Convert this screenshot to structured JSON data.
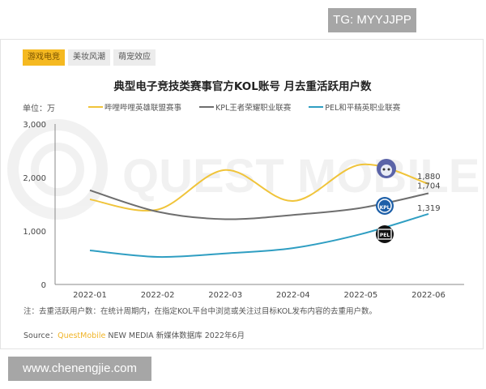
{
  "watermarks": {
    "top_right": "TG: MYYJJPP",
    "bottom_left": "www.chenengjie.com",
    "background": "QUEST MOBILE"
  },
  "tabs": [
    {
      "label": "游戏电竞",
      "active": true
    },
    {
      "label": "美妆风潮",
      "active": false
    },
    {
      "label": "萌宠效应",
      "active": false
    }
  ],
  "chart": {
    "title": "典型电子竞技类赛事官方KOL账号 月去重活跃用户数",
    "unit": "单位：万"
  },
  "legend": [
    {
      "label": "哔哩哔哩英雄联盟赛事",
      "color": "#f0c43a"
    },
    {
      "label": "KPL王者荣耀职业联赛",
      "color": "#6e6e6e"
    },
    {
      "label": "PEL和平精英职业联赛",
      "color": "#2f9ec2"
    }
  ],
  "footer": {
    "note": "注：去重活跃用户数：在统计周期内，在指定KOL平台中浏览或关注过目标KOL发布内容的去重用户数。",
    "source_prefix": "Source：",
    "source_brand": "QuestMobile",
    "source_rest": " NEW MEDIA 新媒体数据库 2022年6月"
  },
  "chart_data": {
    "type": "line",
    "title": "典型电子竞技类赛事官方KOL账号 月去重活跃用户数",
    "xlabel": "",
    "ylabel": "单位：万",
    "categories": [
      "2022-01",
      "2022-02",
      "2022-03",
      "2022-04",
      "2022-05",
      "2022-06"
    ],
    "yticks": [
      "0",
      "1,000",
      "2,000",
      "3,000"
    ],
    "ylim": [
      0,
      3000
    ],
    "grid": false,
    "legend_position": "top",
    "series": [
      {
        "name": "哔哩哔哩英雄联盟赛事",
        "color": "#f0c43a",
        "values": [
          1590,
          1400,
          2140,
          1560,
          2240,
          1880
        ],
        "end_label": "1,880"
      },
      {
        "name": "KPL王者荣耀职业联赛",
        "color": "#6e6e6e",
        "values": [
          1760,
          1360,
          1220,
          1300,
          1430,
          1704
        ],
        "end_label": "1,704"
      },
      {
        "name": "PEL和平精英职业联赛",
        "color": "#2f9ec2",
        "values": [
          636,
          515,
          580,
          680,
          940,
          1319
        ],
        "end_label": "1,319"
      }
    ]
  }
}
